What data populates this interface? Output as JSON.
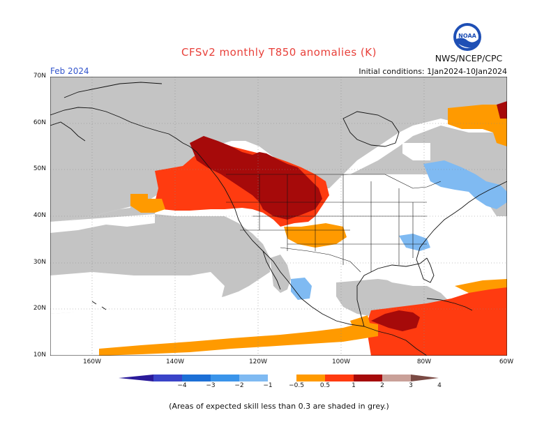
{
  "title": "CFSv2 monthly T850 anomalies (K)",
  "month": "Feb 2024",
  "initial_conditions": "Initial conditions: 1Jan2024-10Jan2024",
  "agency": "NWS/NCEP/CPC",
  "logo_text": "NOAA",
  "footnote": "(Areas of expected skill less than 0.3 are shaded in grey.)",
  "lat_labels": [
    "70N",
    "60N",
    "50N",
    "40N",
    "30N",
    "20N",
    "10N"
  ],
  "lon_labels": [
    "160W",
    "140W",
    "120W",
    "100W",
    "80W",
    "60W"
  ],
  "colorbar_labels": [
    "−4",
    "−3",
    "−2",
    "−1",
    "−0.5",
    "0.5",
    "1",
    "2",
    "3",
    "4"
  ],
  "colorbar_colors": [
    "#2a1a9a",
    "#3a44c8",
    "#1c6fd6",
    "#3a94ea",
    "#7fbaf2",
    "#ffffff",
    "#ff9a00",
    "#ff3b10",
    "#a60a0a",
    "#c9a098",
    "#7a4a44"
  ],
  "colors": {
    "skill_grey": "#c4c4c4",
    "ocean_white": "#ffffff",
    "coast": "#111111",
    "grid": "#888888"
  }
}
